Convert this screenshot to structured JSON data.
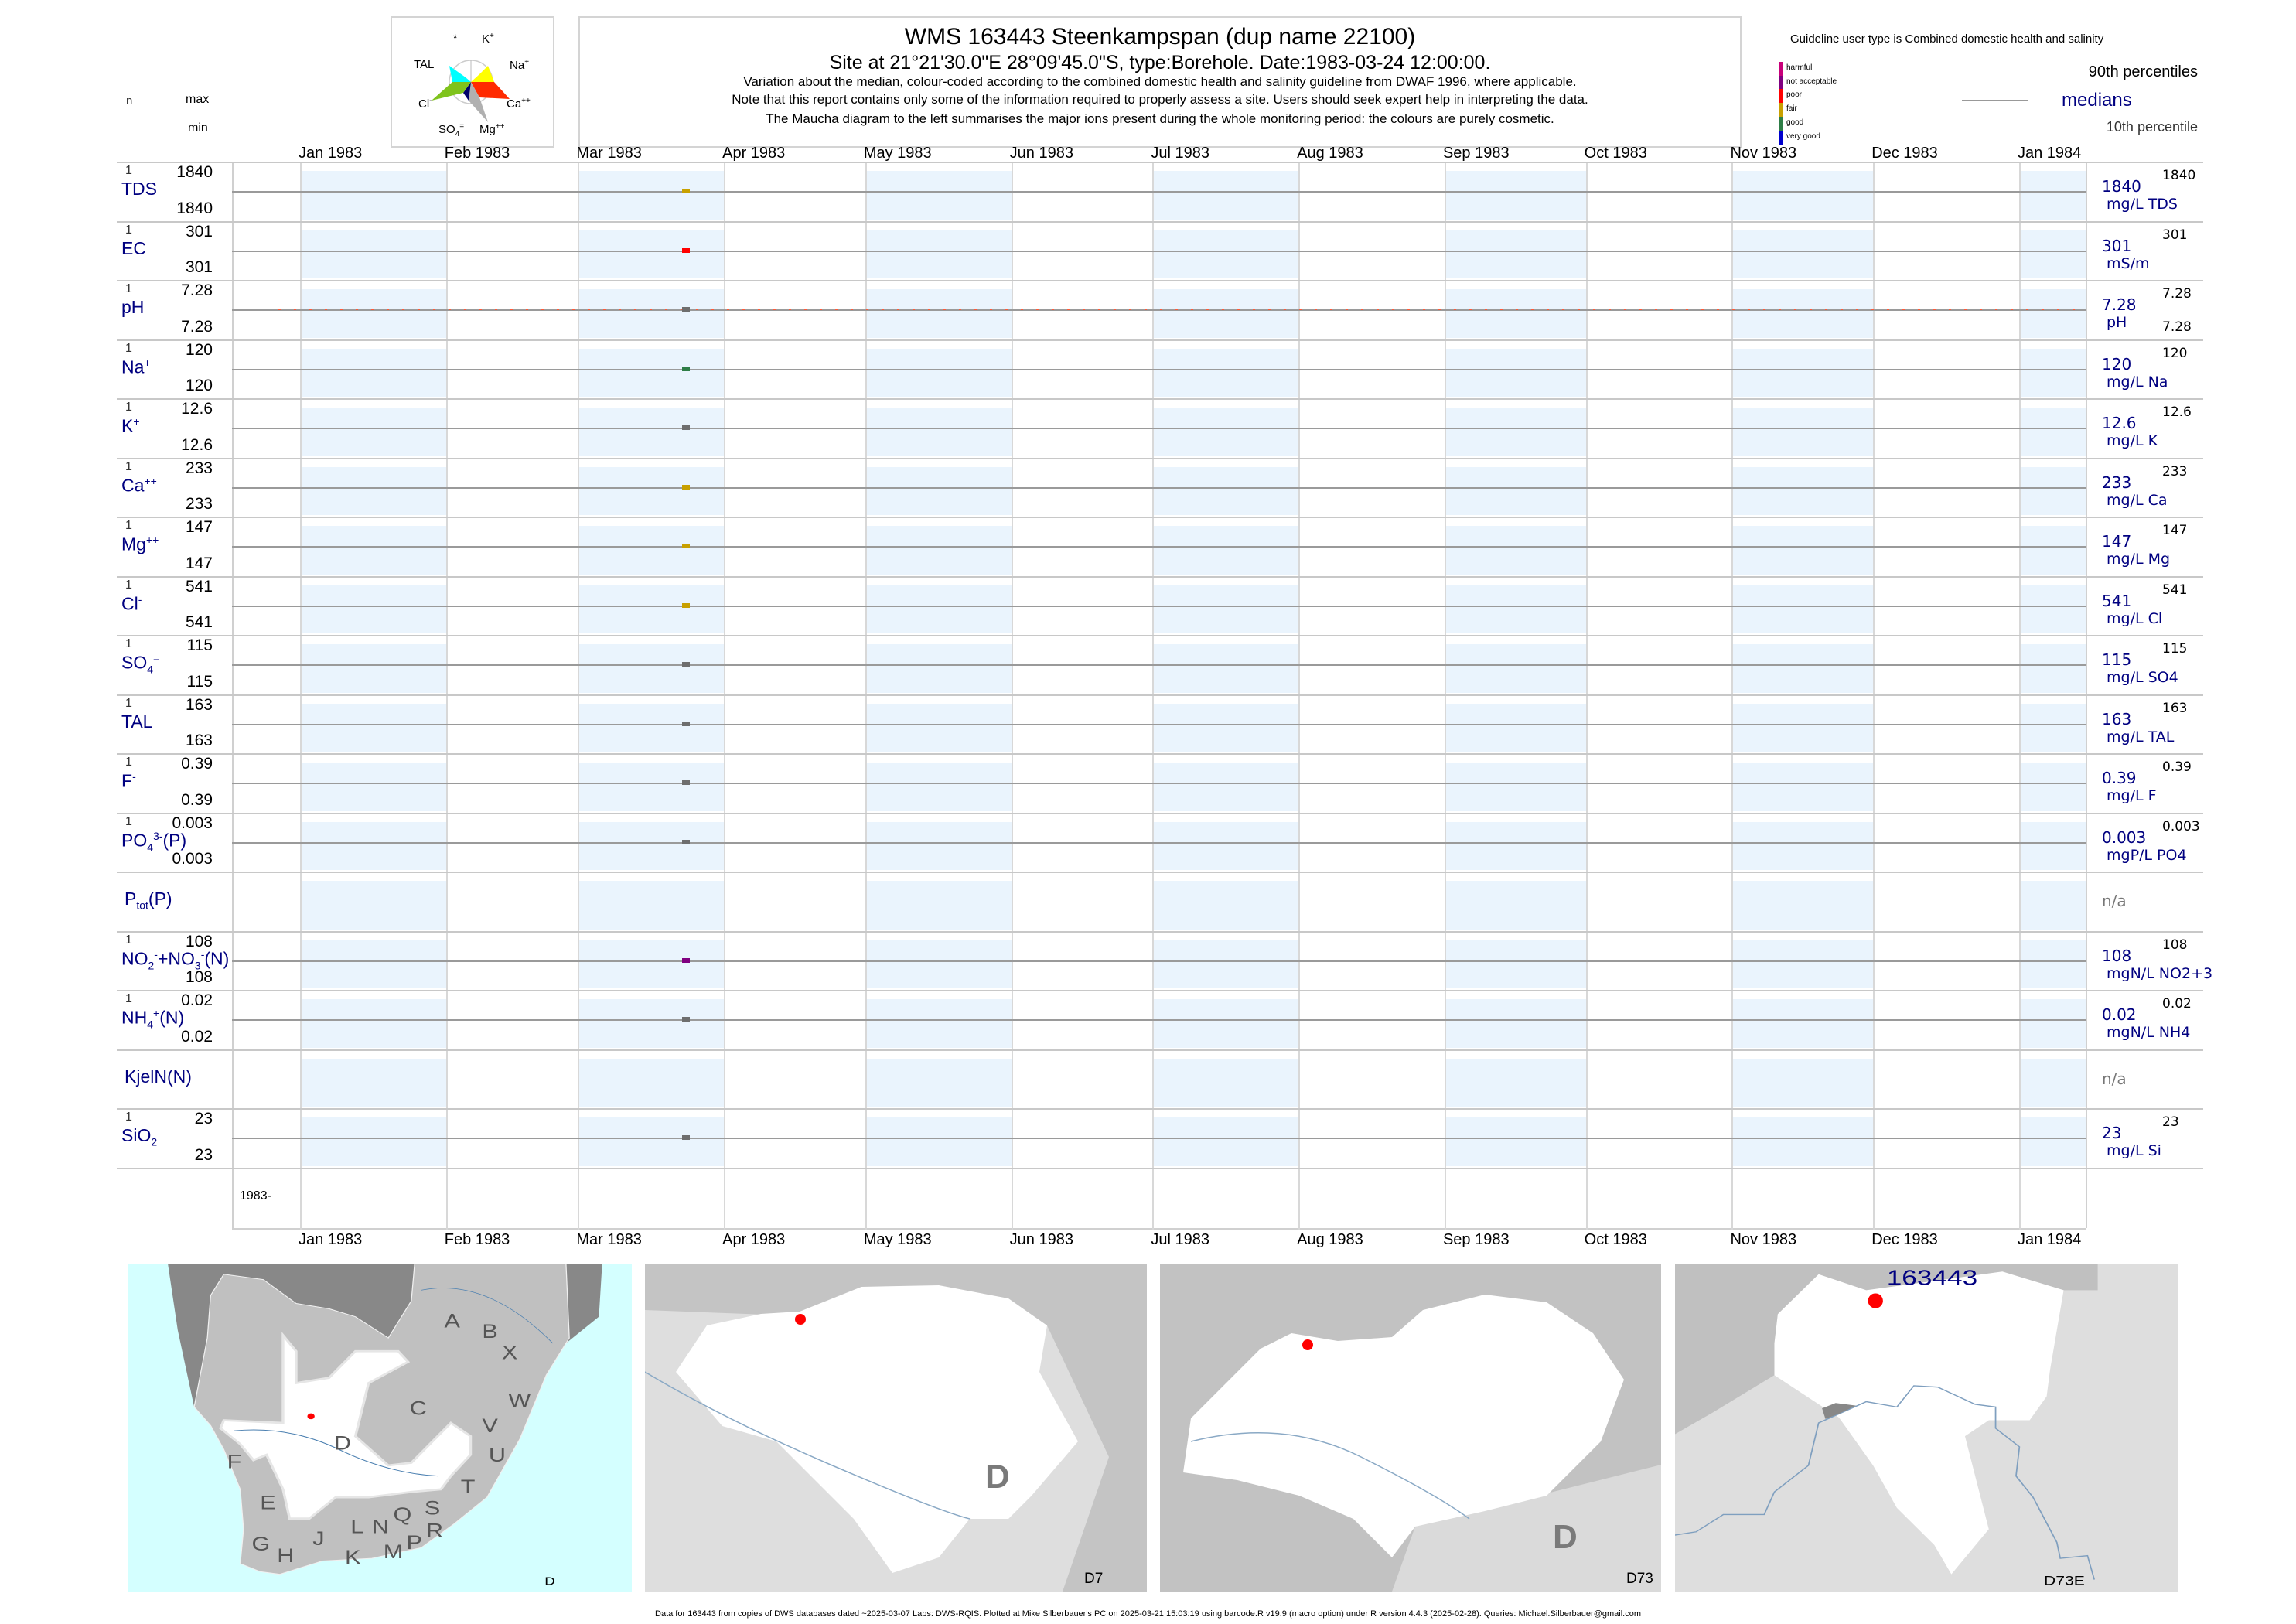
{
  "header": {
    "title": "WMS 163443  Steenkampspan (dup name 22100)",
    "subtitle": "Site at 21°21'30.0\"E 28°09'45.0\"S, type:Borehole. Date:1983-03-24 12:00:00.",
    "note1": "Variation about the median,  colour-coded according to the combined domestic health and salinity guideline from DWAF 1996, where applicable.",
    "note2": "Note that this report contains only some of the information required to properly assess a site. Users should seek expert help in interpreting the data.",
    "note3": "The Maucha diagram to the left summarises the major ions present during the whole monitoring period: the colours are purely cosmetic."
  },
  "maucha": {
    "labels": {
      "star": "*",
      "k": "K",
      "k_sup": "+",
      "tal": "TAL",
      "na": "Na",
      "na_sup": "+",
      "cl": "Cl",
      "cl_sup": "-",
      "ca": "Ca",
      "ca_sup": "++",
      "so4": "SO",
      "so4_sub": "4",
      "so4_sup": "=",
      "mg": "Mg",
      "mg_sup": "++"
    },
    "colors": {
      "tal": "#00ffff",
      "na": "#ffff00",
      "ca": "#ff2a00",
      "mg": "#b0b0b0",
      "so4": "#00006b",
      "cl": "#7fc31c"
    }
  },
  "column_headers": {
    "n": "n",
    "max": "max",
    "min": "min"
  },
  "legend": {
    "guideline_title": "Guideline user type is Combined domestic health and salinity",
    "categories": [
      {
        "label": "harmful",
        "color": "#c8007a"
      },
      {
        "label": "not acceptable",
        "color": "#800080"
      },
      {
        "label": "poor",
        "color": "#ff0000"
      },
      {
        "label": "fair",
        "color": "#c8a000"
      },
      {
        "label": "good",
        "color": "#2e7d46"
      },
      {
        "label": "very good",
        "color": "#0000cd"
      }
    ],
    "p90": "90th percentiles",
    "median": "medians",
    "p10": "10th percentile",
    "no_guideline_color": "#6e6e6e"
  },
  "chart_data": {
    "type": "scatter",
    "x_range": [
      "1982-12-15",
      "1984-01-15"
    ],
    "x_ticks": [
      "Jan 1983",
      "Feb 1983",
      "Mar 1983",
      "Apr 1983",
      "May 1983",
      "Jun 1983",
      "Jul 1983",
      "Aug 1983",
      "Sep 1983",
      "Oct 1983",
      "Nov 1983",
      "Dec 1983",
      "Jan 1984"
    ],
    "x_tick_dates": [
      "1983-01-01",
      "1983-02-01",
      "1983-03-01",
      "1983-04-01",
      "1983-05-01",
      "1983-06-01",
      "1983-07-01",
      "1983-08-01",
      "1983-09-01",
      "1983-10-01",
      "1983-11-01",
      "1983-12-01",
      "1984-01-01"
    ],
    "year_label": "1983-",
    "sample_date": "1983-03-24",
    "series": [
      {
        "name": [
          [
            "TDS",
            ""
          ]
        ],
        "n": "1",
        "max": "1840",
        "min": "1840",
        "value": 1840,
        "median": "1840",
        "unit": "mg/L TDS",
        "class": "fair"
      },
      {
        "name": [
          [
            "EC",
            ""
          ]
        ],
        "n": "1",
        "max": "301",
        "min": "301",
        "value": 301,
        "median": "301",
        "unit": "mS/m",
        "class": "poor"
      },
      {
        "name": [
          [
            "pH",
            ""
          ]
        ],
        "n": "1",
        "max": "7.28",
        "min": "7.28",
        "value": 7.28,
        "median": "7.28",
        "unit": "pH",
        "class": "none",
        "right_min": "7.28",
        "dotted": true
      },
      {
        "name": [
          [
            "Na",
            ""
          ],
          [
            "+",
            "sup"
          ]
        ],
        "n": "1",
        "max": "120",
        "min": "120",
        "value": 120,
        "median": "120",
        "unit": "mg/L Na",
        "class": "good"
      },
      {
        "name": [
          [
            "K",
            ""
          ],
          [
            "+",
            "sup"
          ]
        ],
        "n": "1",
        "max": "12.6",
        "min": "12.6",
        "value": 12.6,
        "median": "12.6",
        "unit": "mg/L K",
        "class": "none"
      },
      {
        "name": [
          [
            "Ca",
            ""
          ],
          [
            "++",
            "sup"
          ]
        ],
        "n": "1",
        "max": "233",
        "min": "233",
        "value": 233,
        "median": "233",
        "unit": "mg/L Ca",
        "class": "fair"
      },
      {
        "name": [
          [
            "Mg",
            ""
          ],
          [
            "++",
            "sup"
          ]
        ],
        "n": "1",
        "max": "147",
        "min": "147",
        "value": 147,
        "median": "147",
        "unit": "mg/L Mg",
        "class": "fair"
      },
      {
        "name": [
          [
            "Cl",
            ""
          ],
          [
            "-",
            "sup"
          ]
        ],
        "n": "1",
        "max": "541",
        "min": "541",
        "value": 541,
        "median": "541",
        "unit": "mg/L Cl",
        "class": "fair"
      },
      {
        "name": [
          [
            "SO",
            ""
          ],
          [
            "4",
            "sub"
          ],
          [
            "=",
            "sup"
          ]
        ],
        "n": "1",
        "max": "115",
        "min": "115",
        "value": 115,
        "median": "115",
        "unit": "mg/L SO4",
        "class": "none"
      },
      {
        "name": [
          [
            "TAL",
            ""
          ]
        ],
        "n": "1",
        "max": "163",
        "min": "163",
        "value": 163,
        "median": "163",
        "unit": "mg/L TAL",
        "class": "none"
      },
      {
        "name": [
          [
            "F",
            ""
          ],
          [
            "-",
            "sup"
          ]
        ],
        "n": "1",
        "max": "0.39",
        "min": "0.39",
        "value": 0.39,
        "median": "0.39",
        "unit": "mg/L F",
        "class": "none"
      },
      {
        "name": [
          [
            "PO",
            ""
          ],
          [
            "4",
            "sub"
          ],
          [
            "3-",
            "sup"
          ],
          [
            "(P)",
            ""
          ]
        ],
        "n": "1",
        "max": "0.003",
        "min": "0.003",
        "value": 0.003,
        "median": "0.003",
        "unit": "mgP/L PO4",
        "class": "none"
      },
      {
        "name": [
          [
            "P",
            ""
          ],
          [
            "tot",
            "sub"
          ],
          [
            "(P)",
            ""
          ]
        ],
        "na": "n/a"
      },
      {
        "name": [
          [
            "NO",
            ""
          ],
          [
            "2",
            "sub"
          ],
          [
            "-",
            "sup"
          ],
          [
            "+NO",
            ""
          ],
          [
            "3",
            "sub"
          ],
          [
            "-",
            "sup"
          ],
          [
            "(N)",
            ""
          ]
        ],
        "n": "1",
        "max": "108",
        "min": "108",
        "value": 108,
        "median": "108",
        "unit": "mgN/L NO2+3",
        "class": "not acceptable"
      },
      {
        "name": [
          [
            "NH",
            ""
          ],
          [
            "4",
            "sub"
          ],
          [
            "+",
            "sup"
          ],
          [
            "(N)",
            ""
          ]
        ],
        "n": "1",
        "max": "0.02",
        "min": "0.02",
        "value": 0.02,
        "median": "0.02",
        "unit": "mgN/L NH4",
        "class": "none"
      },
      {
        "name": [
          [
            "KjelN(N)",
            ""
          ]
        ],
        "na": "n/a"
      },
      {
        "name": [
          [
            "SiO",
            ""
          ],
          [
            "2",
            "sub"
          ]
        ],
        "n": "1",
        "max": "23",
        "min": "23",
        "value": 23,
        "median": "23",
        "unit": "mg/L Si",
        "class": "none"
      }
    ]
  },
  "maps": {
    "map1": {
      "corner": "D",
      "regions": [
        "A",
        "B",
        "X",
        "W",
        "C",
        "V",
        "U",
        "D",
        "F",
        "T",
        "E",
        "S",
        "Q",
        "N",
        "L",
        "R",
        "J",
        "G",
        "P",
        "H",
        "K",
        "M"
      ]
    },
    "map2": {
      "corner": "D7",
      "big": "D"
    },
    "map3": {
      "corner": "D73",
      "big": "D"
    },
    "map4": {
      "corner": "D73E",
      "site": "163443"
    }
  },
  "footer": "Data for 163443 from copies of DWS databases dated ~2025-03-07 Labs: DWS-RQIS. Plotted at Mike Silberbauer's PC on 2025-03-21 15:03:19 using barcode.R v19.9 (macro option) under R version 4.4.3 (2025-02-28). Queries: Michael.Silberbauer@gmail.com"
}
